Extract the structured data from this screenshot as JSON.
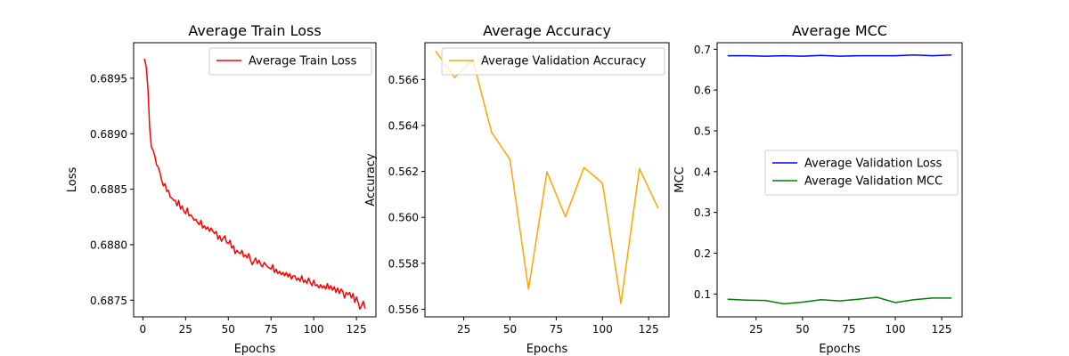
{
  "chart_data": [
    {
      "type": "line",
      "title": "Average Train Loss",
      "xlabel": "Epochs",
      "ylabel": "Loss",
      "xlim": [
        -5.4,
        136.4
      ],
      "ylim": [
        0.68735,
        0.68982
      ],
      "xticks": [
        0,
        25,
        50,
        75,
        100,
        125
      ],
      "xtick_labels": [
        "0",
        "25",
        "50",
        "75",
        "100",
        "125"
      ],
      "yticks": [
        0.6875,
        0.688,
        0.6885,
        0.689,
        0.6895
      ],
      "ytick_labels": [
        "0.6875",
        "0.6880",
        "0.6885",
        "0.6890",
        "0.6895"
      ],
      "legend_position": "upper right",
      "grid": false,
      "series": [
        {
          "name": "Average Train Loss",
          "color": "#ff0000",
          "x": [
            1,
            2,
            3,
            4,
            5,
            6,
            7,
            8,
            9,
            10,
            11,
            12,
            13,
            14,
            15,
            16,
            17,
            18,
            19,
            20,
            21,
            22,
            23,
            24,
            25,
            26,
            27,
            28,
            29,
            30,
            31,
            32,
            33,
            34,
            35,
            36,
            37,
            38,
            39,
            40,
            41,
            42,
            43,
            44,
            45,
            46,
            47,
            48,
            49,
            50,
            51,
            52,
            53,
            54,
            55,
            56,
            57,
            58,
            59,
            60,
            61,
            62,
            63,
            64,
            65,
            66,
            67,
            68,
            69,
            70,
            71,
            72,
            73,
            74,
            75,
            76,
            77,
            78,
            79,
            80,
            81,
            82,
            83,
            84,
            85,
            86,
            87,
            88,
            89,
            90,
            91,
            92,
            93,
            94,
            95,
            96,
            97,
            98,
            99,
            100,
            101,
            102,
            103,
            104,
            105,
            106,
            107,
            108,
            109,
            110,
            111,
            112,
            113,
            114,
            115,
            116,
            117,
            118,
            119,
            120,
            121,
            122,
            123,
            124,
            125,
            126,
            127,
            128,
            129,
            130
          ],
          "y": [
            0.68967,
            0.6896,
            0.6894,
            0.68905,
            0.68888,
            0.68885,
            0.6888,
            0.68872,
            0.6887,
            0.68865,
            0.68858,
            0.68853,
            0.68855,
            0.68848,
            0.68849,
            0.68843,
            0.68842,
            0.6884,
            0.6884,
            0.68835,
            0.6884,
            0.68832,
            0.68835,
            0.6883,
            0.68828,
            0.68833,
            0.68826,
            0.68827,
            0.68825,
            0.68822,
            0.68823,
            0.6882,
            0.68818,
            0.68822,
            0.68815,
            0.68817,
            0.68814,
            0.68816,
            0.68812,
            0.68815,
            0.68812,
            0.6881,
            0.68812,
            0.68805,
            0.68808,
            0.68803,
            0.68806,
            0.68808,
            0.68802,
            0.68801,
            0.68804,
            0.68797,
            0.68799,
            0.68792,
            0.68795,
            0.68793,
            0.68792,
            0.68795,
            0.68789,
            0.68791,
            0.68788,
            0.68792,
            0.68786,
            0.68782,
            0.68785,
            0.68788,
            0.68783,
            0.68786,
            0.68782,
            0.6878,
            0.68784,
            0.68782,
            0.6878,
            0.68779,
            0.68778,
            0.68782,
            0.68775,
            0.68778,
            0.68774,
            0.68776,
            0.68773,
            0.68775,
            0.68772,
            0.68775,
            0.68771,
            0.68774,
            0.68769,
            0.68772,
            0.68772,
            0.68768,
            0.6877,
            0.68767,
            0.68772,
            0.68766,
            0.68768,
            0.68765,
            0.6877,
            0.68766,
            0.68763,
            0.68768,
            0.68763,
            0.68764,
            0.68761,
            0.68764,
            0.68761,
            0.68763,
            0.6876,
            0.68765,
            0.6876,
            0.68763,
            0.68759,
            0.68762,
            0.68757,
            0.68761,
            0.68756,
            0.6876,
            0.68758,
            0.68752,
            0.68757,
            0.68755,
            0.68757,
            0.68752,
            0.68756,
            0.68748,
            0.68753,
            0.68748,
            0.68742,
            0.68745,
            0.68749,
            0.68743
          ]
        }
      ]
    },
    {
      "type": "line",
      "title": "Average Accuracy",
      "xlabel": "Epochs",
      "ylabel": "Accuracy",
      "xlim": [
        4,
        136
      ],
      "ylim": [
        0.55567,
        0.5676
      ],
      "xticks": [
        25,
        50,
        75,
        100,
        125
      ],
      "xtick_labels": [
        "25",
        "50",
        "75",
        "100",
        "125"
      ],
      "yticks": [
        0.556,
        0.558,
        0.56,
        0.562,
        0.564,
        0.566
      ],
      "ytick_labels": [
        "0.556",
        "0.558",
        "0.560",
        "0.562",
        "0.564",
        "0.566"
      ],
      "legend_position": "upper right",
      "grid": false,
      "series": [
        {
          "name": "Average Validation Accuracy",
          "color": "#ffa500",
          "x": [
            10,
            20,
            30,
            40,
            50,
            60,
            70,
            80,
            90,
            100,
            110,
            120,
            130
          ],
          "y": [
            0.56722,
            0.56608,
            0.56683,
            0.56371,
            0.56252,
            0.55688,
            0.56198,
            0.56002,
            0.56217,
            0.56149,
            0.55625,
            0.56212,
            0.56042
          ]
        }
      ]
    },
    {
      "type": "line",
      "title": "Average MCC",
      "xlabel": "Epochs",
      "ylabel": "MCC",
      "xlim": [
        4,
        136
      ],
      "ylim": [
        0.044,
        0.716
      ],
      "xticks": [
        25,
        50,
        75,
        100,
        125
      ],
      "xtick_labels": [
        "25",
        "50",
        "75",
        "100",
        "125"
      ],
      "yticks": [
        0.1,
        0.2,
        0.3,
        0.4,
        0.5,
        0.6,
        0.7
      ],
      "ytick_labels": [
        "0.1",
        "0.2",
        "0.3",
        "0.4",
        "0.5",
        "0.6",
        "0.7"
      ],
      "legend_position": "center right",
      "grid": false,
      "series": [
        {
          "name": "Average Validation Loss",
          "color": "#0000ff",
          "x": [
            10,
            20,
            30,
            40,
            50,
            60,
            70,
            80,
            90,
            100,
            110,
            120,
            130
          ],
          "y": [
            0.684,
            0.684,
            0.683,
            0.684,
            0.683,
            0.685,
            0.683,
            0.684,
            0.684,
            0.684,
            0.686,
            0.684,
            0.686
          ]
        },
        {
          "name": "Average Validation MCC",
          "color": "#008000",
          "x": [
            10,
            20,
            30,
            40,
            50,
            60,
            70,
            80,
            90,
            100,
            110,
            120,
            130
          ],
          "y": [
            0.087,
            0.085,
            0.084,
            0.076,
            0.08,
            0.086,
            0.083,
            0.087,
            0.092,
            0.079,
            0.086,
            0.09,
            0.09
          ]
        }
      ]
    }
  ]
}
